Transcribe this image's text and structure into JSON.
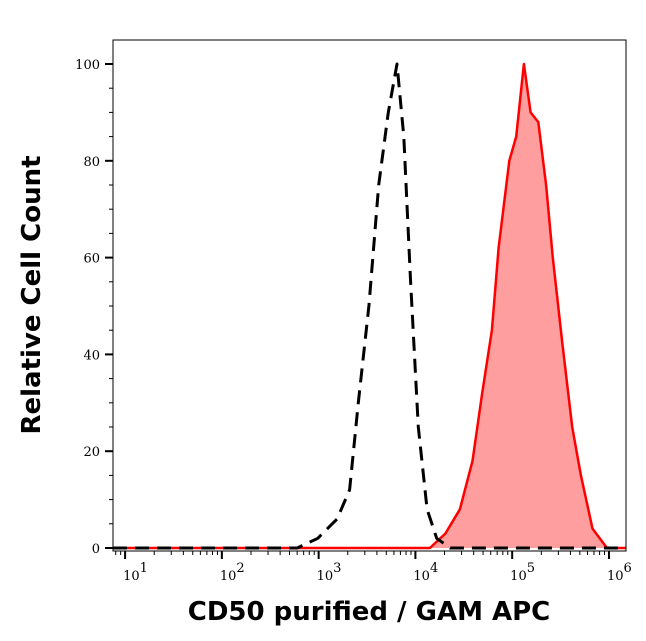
{
  "chart_data": {
    "type": "area",
    "title": "",
    "xlabel": "CD50 purified / GAM APC",
    "ylabel": "Relative Cell Count",
    "x_scale": "log",
    "xlim": [
      7.5,
      1500000
    ],
    "ylim": [
      0,
      105
    ],
    "x_ticks": [
      10,
      100,
      1000,
      10000,
      100000,
      1000000
    ],
    "x_tick_labels": [
      {
        "base": "10",
        "exp": "1"
      },
      {
        "base": "10",
        "exp": "2"
      },
      {
        "base": "10",
        "exp": "3"
      },
      {
        "base": "10",
        "exp": "4"
      },
      {
        "base": "10",
        "exp": "5"
      },
      {
        "base": "10",
        "exp": "6"
      }
    ],
    "y_ticks": [
      0,
      20,
      40,
      60,
      80,
      100
    ],
    "y_tick_labels": [
      "0",
      "20",
      "40",
      "60",
      "80",
      "100"
    ],
    "grid": false,
    "series": [
      {
        "style": "dashed",
        "color": "#000000",
        "fill": false,
        "points": [
          [
            7.5,
            0
          ],
          [
            600,
            0
          ],
          [
            980,
            2
          ],
          [
            1550,
            6
          ],
          [
            2090,
            12
          ],
          [
            2570,
            30
          ],
          [
            3310,
            50
          ],
          [
            4170,
            75
          ],
          [
            5250,
            90
          ],
          [
            6460,
            100
          ],
          [
            7590,
            85
          ],
          [
            8910,
            55
          ],
          [
            10700,
            25
          ],
          [
            13200,
            8
          ],
          [
            16600,
            2
          ],
          [
            22900,
            0
          ],
          [
            1500000,
            0
          ]
        ]
      },
      {
        "style": "solid",
        "color": "#ff0000",
        "fill": true,
        "fill_color": "#ff9e9e",
        "points": [
          [
            7.5,
            0
          ],
          [
            14100,
            0
          ],
          [
            20400,
            3
          ],
          [
            28800,
            8
          ],
          [
            38900,
            18
          ],
          [
            49000,
            32
          ],
          [
            61700,
            45
          ],
          [
            72400,
            62
          ],
          [
            93300,
            80
          ],
          [
            110000,
            85
          ],
          [
            132000,
            100
          ],
          [
            155000,
            90
          ],
          [
            186000,
            88
          ],
          [
            224000,
            75
          ],
          [
            263000,
            60
          ],
          [
            331000,
            42
          ],
          [
            417000,
            25
          ],
          [
            513000,
            15
          ],
          [
            676000,
            4
          ],
          [
            955000,
            0
          ],
          [
            1500000,
            0
          ]
        ]
      }
    ]
  }
}
